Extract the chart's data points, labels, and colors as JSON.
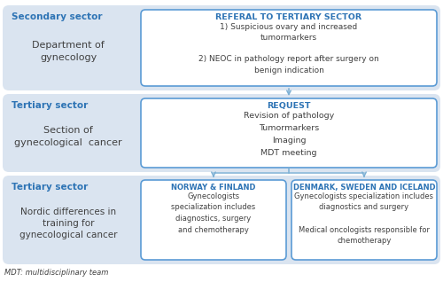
{
  "bg_color": "#ffffff",
  "row1_bg": "#dae4f0",
  "row2_bg": "#dae4f0",
  "row3_bg": "#dae4f0",
  "box_bg": "#ffffff",
  "box_border": "#5b9bd5",
  "arrow_color": "#7bafd4",
  "header_color": "#2e74b5",
  "text_color": "#404040",
  "left_header_color": "#2e74b5",
  "row1_label_header": "Secondary sector",
  "row1_label_body": "Department of\ngynecology",
  "row1_box_title": "REFERAL TO TERTIARY SECTOR",
  "row1_box_body": "1) Suspicious ovary and increased\ntumormarkers\n\n2) NEOC in pathology report after surgery on\nbenign indication",
  "row2_label_header": "Tertiary sector",
  "row2_label_body": "Section of\ngynecological  cancer",
  "row2_box_title": "REQUEST",
  "row2_box_body": "Revision of pathology\nTumormarkers\nImaging\nMDT meeting",
  "row3_label_header": "Tertiary sector",
  "row3_label_body": "Nordic differences in\ntraining for\ngynecological cancer",
  "row3_box1_title": "NORWAY & FINLAND",
  "row3_box1_body": "Gynecologists\nspecialization includes\ndiagnostics, surgery\nand chemotherapy",
  "row3_box2_title": "DENMARK, SWEDEN AND ICELAND",
  "row3_box2_body": "Gynecologists specialization includes\ndiagnostics and surgery\n\nMedical oncologists responsible for\nchemotherapy",
  "footnote": "MDT: multidisciplinary team"
}
